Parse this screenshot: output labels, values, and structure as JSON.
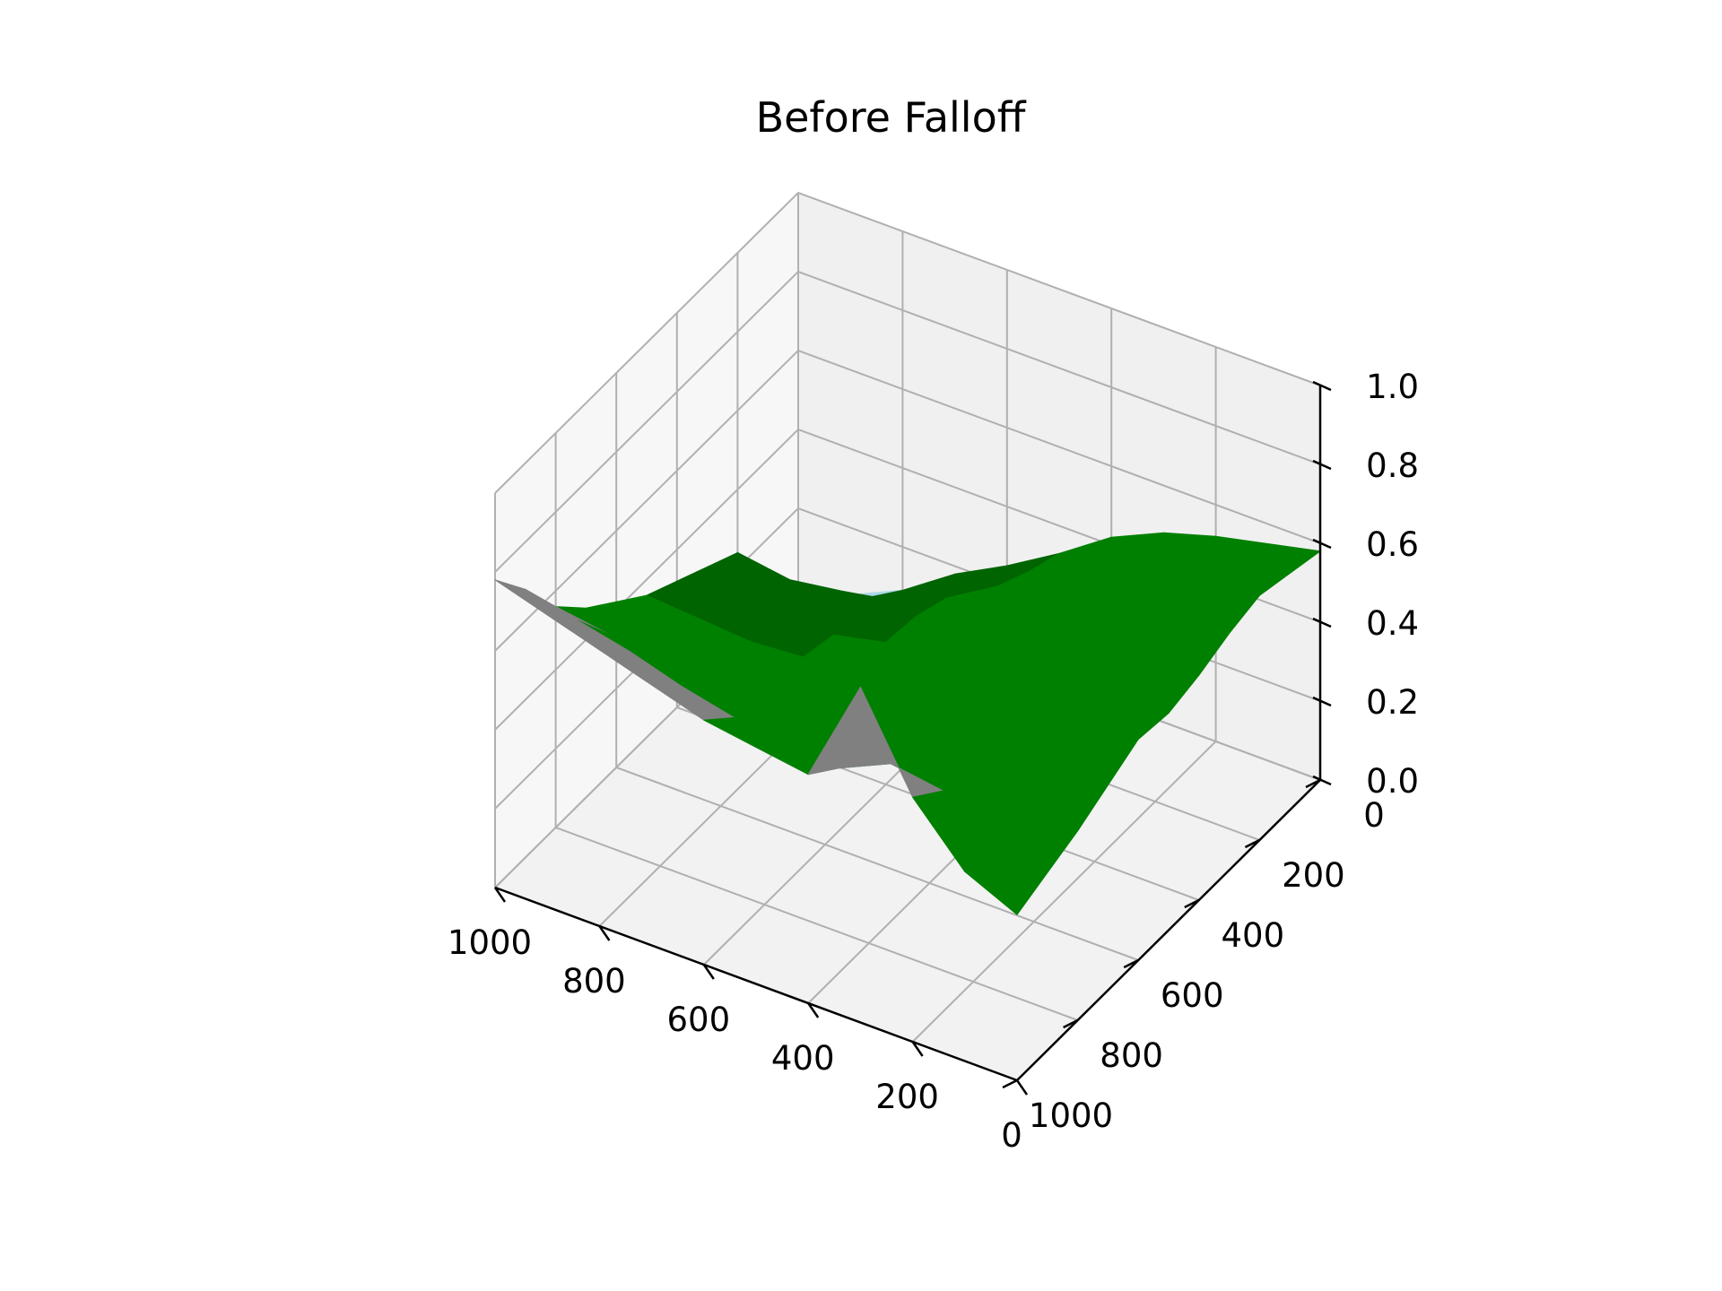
{
  "chart_data": {
    "type": "surface",
    "title": "Before Falloff",
    "xlabel": "",
    "ylabel": "",
    "zlabel": "",
    "grid": true,
    "x_axis": {
      "ticks": [
        0,
        200,
        400,
        600,
        800,
        1000
      ],
      "range": [
        0,
        1000
      ]
    },
    "y_axis": {
      "ticks": [
        0,
        200,
        400,
        600,
        800,
        1000
      ],
      "range": [
        0,
        1000
      ]
    },
    "z_axis": {
      "ticks": [
        0.0,
        0.2,
        0.4,
        0.6,
        0.8,
        1.0
      ],
      "range": [
        0.0,
        1.0
      ]
    },
    "x_tick_labels": [
      "1000",
      "800",
      "600",
      "400",
      "200",
      "0"
    ],
    "y_tick_labels": [
      "0",
      "200",
      "400",
      "600",
      "800",
      "1000"
    ],
    "z_tick_labels": [
      "0.0",
      "0.2",
      "0.4",
      "0.6",
      "0.8",
      "1.0"
    ],
    "colormap_bands": [
      {
        "min": 0.0,
        "max": 0.05,
        "color": "#0000ff"
      },
      {
        "min": 0.05,
        "max": 0.15,
        "color": "#add8e6"
      },
      {
        "min": 0.15,
        "max": 0.35,
        "color": "#006400"
      },
      {
        "min": 0.35,
        "max": 0.6,
        "color": "#008000"
      },
      {
        "min": 0.6,
        "max": 0.8,
        "color": "#808080"
      },
      {
        "min": 0.8,
        "max": 1.0,
        "color": "#ffffff"
      }
    ],
    "grid_resolution_note": "",
    "surface": {
      "x": [
        0,
        100,
        200,
        300,
        400,
        500,
        600,
        700,
        800,
        900,
        1000
      ],
      "y": [
        0,
        100,
        200,
        300,
        400,
        500,
        600,
        700,
        800,
        900,
        1000
      ],
      "z": [
        [
          0.58,
          0.55,
          0.52,
          0.48,
          0.42,
          0.33,
          0.25,
          0.18,
          0.09,
          0.03,
          0.0
        ],
        [
          0.6,
          0.57,
          0.54,
          0.5,
          0.45,
          0.36,
          0.28,
          0.22,
          0.15,
          0.1,
          0.12
        ],
        [
          0.62,
          0.6,
          0.57,
          0.52,
          0.46,
          0.4,
          0.32,
          0.26,
          0.24,
          0.22,
          0.24
        ],
        [
          0.6,
          0.58,
          0.55,
          0.5,
          0.45,
          0.4,
          0.35,
          0.3,
          0.28,
          0.26,
          0.28
        ],
        [
          0.57,
          0.55,
          0.52,
          0.48,
          0.44,
          0.4,
          0.36,
          0.33,
          0.3,
          0.3,
          0.32
        ],
        [
          0.55,
          0.53,
          0.5,
          0.46,
          0.43,
          0.4,
          0.37,
          0.35,
          0.34,
          0.35,
          0.36
        ],
        [
          0.56,
          0.54,
          0.51,
          0.47,
          0.44,
          0.4,
          0.38,
          0.37,
          0.38,
          0.4,
          0.42
        ],
        [
          0.52,
          0.5,
          0.48,
          0.45,
          0.43,
          0.4,
          0.4,
          0.42,
          0.44,
          0.46,
          0.48
        ],
        [
          0.48,
          0.5,
          0.52,
          0.5,
          0.47,
          0.45,
          0.47,
          0.5,
          0.52,
          0.54,
          0.56
        ],
        [
          0.45,
          0.5,
          0.56,
          0.58,
          0.52,
          0.52,
          0.55,
          0.58,
          0.62,
          0.65,
          0.68
        ],
        [
          0.42,
          0.48,
          0.62,
          0.85,
          0.58,
          0.6,
          0.62,
          0.66,
          0.7,
          0.74,
          0.78
        ]
      ]
    }
  }
}
